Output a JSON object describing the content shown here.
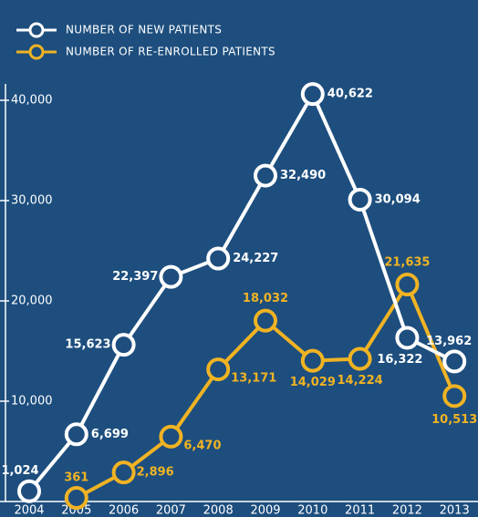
{
  "chart_data": {
    "type": "line",
    "categories": [
      "2004",
      "2005",
      "2006",
      "2007",
      "2008",
      "2009",
      "2010",
      "2011",
      "2012",
      "2013"
    ],
    "series": [
      {
        "name": "NUMBER OF NEW PATIENTS",
        "color": "#ffffff",
        "values": [
          1024,
          6699,
          15623,
          22397,
          24227,
          32490,
          40622,
          30094,
          16322,
          13962
        ],
        "value_labels": [
          "1,024",
          "6,699",
          "15,623",
          "22,397",
          "24,227",
          "32,490",
          "40,622",
          "30,094",
          "16,322",
          "13,962"
        ]
      },
      {
        "name": "NUMBER OF RE-ENROLLED PATIENTS",
        "color": "#f0b323",
        "values": [
          null,
          361,
          2896,
          6470,
          13171,
          18032,
          14029,
          14224,
          21635,
          10513
        ],
        "value_labels": [
          null,
          "361",
          "2,896",
          "6,470",
          "13,171",
          "18,032",
          "14,029",
          "14,224",
          "21,635",
          "10,513"
        ]
      }
    ],
    "ylim": [
      0,
      42000
    ],
    "yticks": [
      {
        "value": 10000,
        "label": "10,000"
      },
      {
        "value": 20000,
        "label": "20,000"
      },
      {
        "value": 30000,
        "label": "30,000"
      },
      {
        "value": 40000,
        "label": "40,000"
      }
    ]
  }
}
